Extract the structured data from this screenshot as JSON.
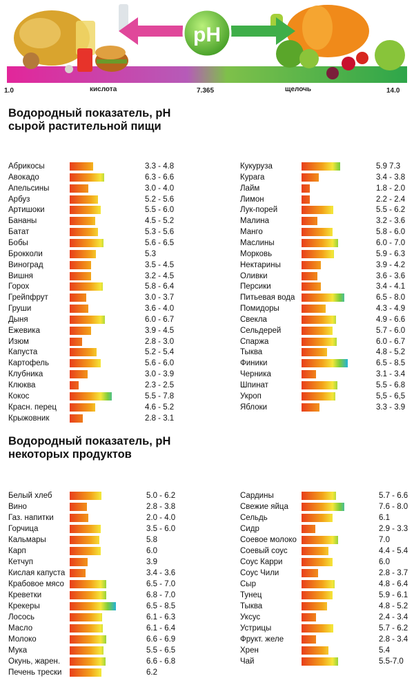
{
  "scale": {
    "min_label": "1.0",
    "left_label": "кислота",
    "center_label": "7.365",
    "center_badge": "pH",
    "right_label": "щелочь",
    "max_label": "14.0"
  },
  "colors": {
    "bar_acid": "#e83e1b",
    "bar_orange": "#f3a21a",
    "bar_yellow": "#f5e63a",
    "bar_green": "#7fce3a",
    "bar_blue": "#22b2d6",
    "ph_badge": "#5cb83a",
    "arrow_left": "#e0479a",
    "arrow_right": "#3fae49"
  },
  "section1": {
    "title_line1": "Водородный показатель, pH",
    "title_line2": "сырой растительной пищи"
  },
  "section2": {
    "title_line1": "Водородный показатель, pH",
    "title_line2": "некоторых продуктов"
  },
  "chart_data": [
    {
      "type": "bar",
      "title": "Водородный показатель, pH сырой растительной пищи",
      "value_type": "pH range",
      "columns": [
        {
          "items": [
            {
              "name": "Абрикосы",
              "range": "3.3 - 4.8",
              "min": 3.3,
              "max": 4.8
            },
            {
              "name": "Авокадо",
              "range": "6.3 - 6.6",
              "min": 6.3,
              "max": 6.6
            },
            {
              "name": "Апельсины",
              "range": "3.0 - 4.0",
              "min": 3.0,
              "max": 4.0
            },
            {
              "name": "Арбуз",
              "range": "5.2 - 5.6",
              "min": 5.2,
              "max": 5.6
            },
            {
              "name": "Артишоки",
              "range": "5.5 - 6.0",
              "min": 5.5,
              "max": 6.0
            },
            {
              "name": "Бананы",
              "range": "4.5 - 5.2",
              "min": 4.5,
              "max": 5.2
            },
            {
              "name": "Батат",
              "range": "5.3 - 5.6",
              "min": 5.3,
              "max": 5.6
            },
            {
              "name": "Бобы",
              "range": "5.6 - 6.5",
              "min": 5.6,
              "max": 6.5
            },
            {
              "name": "Брокколи",
              "range": "5.3",
              "min": 5.3,
              "max": 5.3
            },
            {
              "name": "Виноград",
              "range": "3.5 - 4.5",
              "min": 3.5,
              "max": 4.5
            },
            {
              "name": "Вишня",
              "range": "3.2 - 4.5",
              "min": 3.2,
              "max": 4.5
            },
            {
              "name": "Горох",
              "range": "5.8 - 6.4",
              "min": 5.8,
              "max": 6.4
            },
            {
              "name": "Грейпфрут",
              "range": "3.0 - 3.7",
              "min": 3.0,
              "max": 3.7
            },
            {
              "name": "Груши",
              "range": "3.6 - 4.0",
              "min": 3.6,
              "max": 4.0
            },
            {
              "name": "Дыня",
              "range": "6.0 - 6.7",
              "min": 6.0,
              "max": 6.7
            },
            {
              "name": "Ежевика",
              "range": "3.9 - 4.5",
              "min": 3.9,
              "max": 4.5
            },
            {
              "name": "Изюм",
              "range": "2.8 - 3.0",
              "min": 2.8,
              "max": 3.0
            },
            {
              "name": "Капуста",
              "range": "5.2 - 5.4",
              "min": 5.2,
              "max": 5.4
            },
            {
              "name": "Картофель",
              "range": "5.6 - 6.0",
              "min": 5.6,
              "max": 6.0
            },
            {
              "name": "Клубника",
              "range": "3.0 - 3.9",
              "min": 3.0,
              "max": 3.9
            },
            {
              "name": "Клюква",
              "range": "2.3 - 2.5",
              "min": 2.3,
              "max": 2.5
            },
            {
              "name": "Кокос",
              "range": "5.5 - 7.8",
              "min": 5.5,
              "max": 7.8
            },
            {
              "name": "Красн. перец",
              "range": "4.6 - 5.2",
              "min": 4.6,
              "max": 5.2
            },
            {
              "name": "Крыжовник",
              "range": "2.8 - 3.1",
              "min": 2.8,
              "max": 3.1
            }
          ]
        },
        {
          "items": [
            {
              "name": "Кукуруза",
              "range": "5.9   7.3",
              "min": 5.9,
              "max": 7.3
            },
            {
              "name": "Курага",
              "range": "3.4 - 3.8",
              "min": 3.4,
              "max": 3.8
            },
            {
              "name": "Лайм",
              "range": "1.8 - 2.0",
              "min": 1.8,
              "max": 2.0
            },
            {
              "name": "Лимон",
              "range": "2.2 - 2.4",
              "min": 2.2,
              "max": 2.4
            },
            {
              "name": "Лук-порей",
              "range": "5.5 - 6.2",
              "min": 5.5,
              "max": 6.2
            },
            {
              "name": "Малина",
              "range": "3.2 - 3.6",
              "min": 3.2,
              "max": 3.6
            },
            {
              "name": "Манго",
              "range": "5.8 - 6.0",
              "min": 5.8,
              "max": 6.0
            },
            {
              "name": "Маслины",
              "range": "6.0 - 7.0",
              "min": 6.0,
              "max": 7.0
            },
            {
              "name": "Морковь",
              "range": "5.9 - 6.3",
              "min": 5.9,
              "max": 6.3
            },
            {
              "name": "Нектарины",
              "range": "3.9 - 4.2",
              "min": 3.9,
              "max": 4.2
            },
            {
              "name": "Оливки",
              "range": "3.6 - 3.6",
              "min": 3.6,
              "max": 3.6
            },
            {
              "name": "Персики",
              "range": "3.4 - 4.1",
              "min": 3.4,
              "max": 4.1
            },
            {
              "name": "Питьевая вода",
              "range": "6.5 - 8.0",
              "min": 6.5,
              "max": 8.0
            },
            {
              "name": "Помидоры",
              "range": "4.3 - 4.9",
              "min": 4.3,
              "max": 4.9
            },
            {
              "name": "Свекла",
              "range": "4.9 - 6.6",
              "min": 4.9,
              "max": 6.6
            },
            {
              "name": "Сельдерей",
              "range": "5.7 - 6.0",
              "min": 5.7,
              "max": 6.0
            },
            {
              "name": "Спаржа",
              "range": "6.0 - 6.7",
              "min": 6.0,
              "max": 6.7
            },
            {
              "name": "Тыква",
              "range": "4.8 - 5.2",
              "min": 4.8,
              "max": 5.2
            },
            {
              "name": "Финики",
              "range": "6.5 - 8.5",
              "min": 6.5,
              "max": 8.5
            },
            {
              "name": "Черника",
              "range": "3.1 - 3.4",
              "min": 3.1,
              "max": 3.4
            },
            {
              "name": "Шпинат",
              "range": "5.5 - 6.8",
              "min": 5.5,
              "max": 6.8
            },
            {
              "name": "Укроп",
              "range": "5,5 - 6,5",
              "min": 5.5,
              "max": 6.5
            },
            {
              "name": "Яблоки",
              "range": "3.3 - 3.9",
              "min": 3.3,
              "max": 3.9
            }
          ]
        }
      ]
    },
    {
      "type": "bar",
      "title": "Водородный показатель, pH некоторых продуктов",
      "value_type": "pH range",
      "columns": [
        {
          "items": [
            {
              "name": "Белый хлеб",
              "range": "5.0 - 6.2",
              "min": 5.0,
              "max": 6.2
            },
            {
              "name": "Вино",
              "range": "2.8 - 3.8",
              "min": 2.8,
              "max": 3.8
            },
            {
              "name": "Газ. напитки",
              "range": "2.0 - 4.0",
              "min": 2.0,
              "max": 4.0
            },
            {
              "name": "Горчица",
              "range": "3.5 - 6.0",
              "min": 3.5,
              "max": 6.0
            },
            {
              "name": "Кальмары",
              "range": "5.8",
              "min": 5.8,
              "max": 5.8
            },
            {
              "name": "Карп",
              "range": "6.0",
              "min": 6.0,
              "max": 6.0
            },
            {
              "name": "Кетчуп",
              "range": "3.9",
              "min": 3.9,
              "max": 3.9
            },
            {
              "name": "Кислая капуста",
              "range": "3.4 - 3.6",
              "min": 3.4,
              "max": 3.6
            },
            {
              "name": "Крабовое мясо",
              "range": "6.5 - 7.0",
              "min": 6.5,
              "max": 7.0
            },
            {
              "name": "Креветки",
              "range": "6.8 - 7.0",
              "min": 6.8,
              "max": 7.0
            },
            {
              "name": "Крекеры",
              "range": "6.5 - 8.5",
              "min": 6.5,
              "max": 8.5
            },
            {
              "name": "Лосось",
              "range": "6.1 - 6.3",
              "min": 6.1,
              "max": 6.3
            },
            {
              "name": "Масло",
              "range": "6.1 - 6.4",
              "min": 6.1,
              "max": 6.4
            },
            {
              "name": "Молоко",
              "range": "6.6 - 6.9",
              "min": 6.6,
              "max": 6.9
            },
            {
              "name": "Мука",
              "range": "5.5 - 6.5",
              "min": 5.5,
              "max": 6.5
            },
            {
              "name": "Окунь, жарен.",
              "range": "6.6 - 6.8",
              "min": 6.6,
              "max": 6.8
            },
            {
              "name": "Печень трески",
              "range": "6.2",
              "min": 6.2,
              "max": 6.2
            }
          ]
        },
        {
          "items": [
            {
              "name": "Сардины",
              "range": "5.7 - 6.6",
              "min": 5.7,
              "max": 6.6
            },
            {
              "name": "Свежие яйца",
              "range": "7.6 - 8.0",
              "min": 7.6,
              "max": 8.0
            },
            {
              "name": "Сельдь",
              "range": "6.1",
              "min": 6.1,
              "max": 6.1
            },
            {
              "name": "Сидр",
              "range": "2.9 - 3.3",
              "min": 2.9,
              "max": 3.3
            },
            {
              "name": "Соевое молоко",
              "range": "7.0",
              "min": 7.0,
              "max": 7.0
            },
            {
              "name": "Соевый соус",
              "range": "4.4 - 5.4",
              "min": 4.4,
              "max": 5.4
            },
            {
              "name": "Соус Карри",
              "range": "6.0",
              "min": 6.0,
              "max": 6.0
            },
            {
              "name": "Соус Чили",
              "range": "2.8 - 3.7",
              "min": 2.8,
              "max": 3.7
            },
            {
              "name": "Сыр",
              "range": "4.8 - 6.4",
              "min": 4.8,
              "max": 6.4
            },
            {
              "name": "Тунец",
              "range": "5.9 - 6.1",
              "min": 5.9,
              "max": 6.1
            },
            {
              "name": "Тыква",
              "range": "4.8 - 5.2",
              "min": 4.8,
              "max": 5.2
            },
            {
              "name": "Уксус",
              "range": "2.4 - 3.4",
              "min": 2.4,
              "max": 3.4
            },
            {
              "name": "Устрицы",
              "range": "5.7 - 6.2",
              "min": 5.7,
              "max": 6.2
            },
            {
              "name": "Фрукт. желе",
              "range": "2.8 - 3.4",
              "min": 2.8,
              "max": 3.4
            },
            {
              "name": "Хрен",
              "range": "5.4",
              "min": 5.4,
              "max": 5.4
            },
            {
              "name": "Чай",
              "range": "5.5-7.0",
              "min": 5.5,
              "max": 7.0
            }
          ]
        }
      ]
    }
  ]
}
